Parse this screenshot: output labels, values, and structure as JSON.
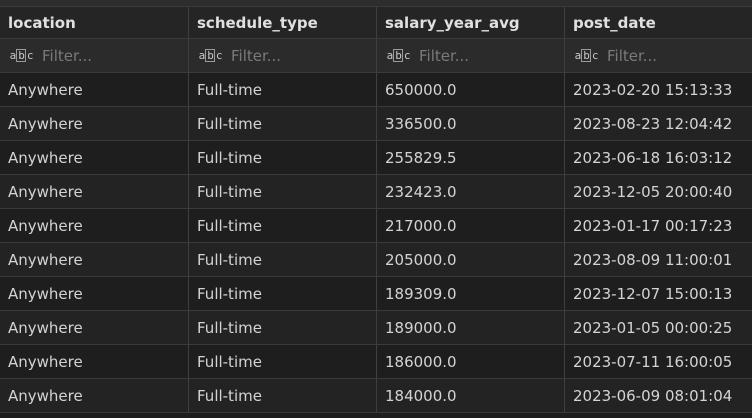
{
  "columns": [
    "location",
    "schedule_type",
    "salary_year_avg",
    "post_date"
  ],
  "filter_placeholder": "Filter...",
  "filter_icon_label": {
    "a": "a",
    "b": "b",
    "c": "c"
  },
  "filter_icon": "abc-text-filter-icon",
  "rows": [
    [
      "Anywhere",
      "Full-time",
      "650000.0",
      "2023-02-20 15:13:33"
    ],
    [
      "Anywhere",
      "Full-time",
      "336500.0",
      "2023-08-23 12:04:42"
    ],
    [
      "Anywhere",
      "Full-time",
      "255829.5",
      "2023-06-18 16:03:12"
    ],
    [
      "Anywhere",
      "Full-time",
      "232423.0",
      "2023-12-05 20:00:40"
    ],
    [
      "Anywhere",
      "Full-time",
      "217000.0",
      "2023-01-17 00:17:23"
    ],
    [
      "Anywhere",
      "Full-time",
      "205000.0",
      "2023-08-09 11:00:01"
    ],
    [
      "Anywhere",
      "Full-time",
      "189309.0",
      "2023-12-07 15:00:13"
    ],
    [
      "Anywhere",
      "Full-time",
      "189000.0",
      "2023-01-05 00:00:25"
    ],
    [
      "Anywhere",
      "Full-time",
      "186000.0",
      "2023-07-11 16:00:05"
    ],
    [
      "Anywhere",
      "Full-time",
      "184000.0",
      "2023-06-09 08:01:04"
    ]
  ]
}
